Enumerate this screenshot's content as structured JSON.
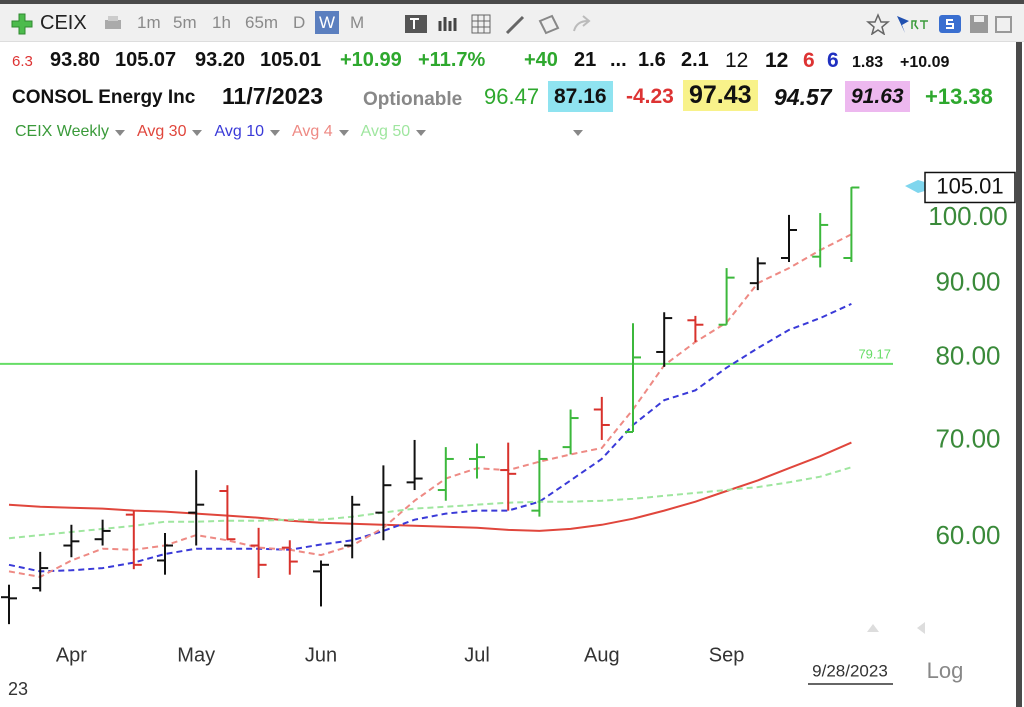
{
  "toolbar": {
    "symbol": "CEIX",
    "intervals": [
      "1m",
      "5m",
      "1h",
      "65m",
      "D",
      "W",
      "M"
    ]
  },
  "quote_row": [
    "6.3",
    "93.80",
    "105.07",
    "93.20",
    "105.01",
    "+10.99",
    "+11.7%",
    "+40",
    "21",
    "...",
    "1.6",
    "2.1",
    "12",
    "12",
    "6",
    "6",
    "1.83",
    "+10.09"
  ],
  "info_row": [
    "CONSOL Energy Inc",
    "11/7/2023",
    "Optionable",
    "96.47",
    "87.16",
    "-4.23",
    "97.43",
    "94.57",
    "91.63",
    "+13.38"
  ],
  "chart_data": {
    "type": "ohlc",
    "symbol_label": "CEIX Weekly",
    "symbol_color": "#3a9a3a",
    "log_scale": true,
    "ylim": [
      51.3,
      112.4
    ],
    "yticks": [
      {
        "value": 60,
        "label": "60.00"
      },
      {
        "value": 70,
        "label": "70.00"
      },
      {
        "value": 80,
        "label": "80.00"
      },
      {
        "value": 90,
        "label": "90.00"
      },
      {
        "value": 100,
        "label": "100.00"
      }
    ],
    "categories": [
      null,
      null,
      "Apr",
      null,
      null,
      null,
      "May",
      null,
      null,
      null,
      "Jun",
      null,
      null,
      null,
      null,
      "Jul",
      null,
      null,
      null,
      "Aug",
      null,
      null,
      null,
      "Sep",
      null,
      null,
      null,
      null
    ],
    "open": [
      54.5,
      55.3,
      59.2,
      59.8,
      62.2,
      57.8,
      62.4,
      64.6,
      59.2,
      59.0,
      56.8,
      59.2,
      62.4,
      65.5,
      64.7,
      68.0,
      66.8,
      62.6,
      69.3,
      73.6,
      71.0,
      80.7,
      84.9,
      84.3,
      90.1,
      93.8,
      94.0,
      93.8
    ],
    "high": [
      55.6,
      58.6,
      61.2,
      61.7,
      62.6,
      60.4,
      66.8,
      65.2,
      60.9,
      59.7,
      57.8,
      64.1,
      67.3,
      70.1,
      69.3,
      69.7,
      69.8,
      69.0,
      73.6,
      75.1,
      84.5,
      86.0,
      85.5,
      92.3,
      93.9,
      100.5,
      100.8,
      105.07
    ],
    "low": [
      52.2,
      55.0,
      58.1,
      59.2,
      57.0,
      56.5,
      59.2,
      59.7,
      56.2,
      56.5,
      53.7,
      58.0,
      59.7,
      64.7,
      63.6,
      65.9,
      62.6,
      62.0,
      68.5,
      70.1,
      71.0,
      78.8,
      82.0,
      84.3,
      89.1,
      93.2,
      92.4,
      93.2
    ],
    "close": [
      54.4,
      57.1,
      59.6,
      60.6,
      57.4,
      59.2,
      63.2,
      59.8,
      57.4,
      57.7,
      57.4,
      63.2,
      65.2,
      65.9,
      68.0,
      68.2,
      66.4,
      68.0,
      72.6,
      71.8,
      80.0,
      85.2,
      84.3,
      90.9,
      93.0,
      98.1,
      98.9,
      105.01
    ],
    "bar_colors": [
      "#111111",
      "#111111",
      "#111111",
      "#111111",
      "#d8322c",
      "#111111",
      "#111111",
      "#d8322c",
      "#d8322c",
      "#d8322c",
      "#111111",
      "#111111",
      "#111111",
      "#111111",
      "#3cb83c",
      "#3cb83c",
      "#d8322c",
      "#3cb83c",
      "#3cb83c",
      "#d8322c",
      "#3cb83c",
      "#111111",
      "#d8322c",
      "#3cb83c",
      "#111111",
      "#111111",
      "#3cb83c",
      "#3cb83c"
    ],
    "series": [
      {
        "name": "Avg 30",
        "color": "#e0463c",
        "dash": false,
        "values": [
          63.2,
          63.0,
          62.9,
          62.8,
          62.6,
          62.5,
          62.3,
          62.1,
          61.9,
          61.6,
          61.4,
          61.3,
          61.2,
          61.1,
          61.0,
          60.9,
          60.7,
          60.6,
          60.8,
          61.2,
          61.8,
          62.6,
          63.5,
          64.6,
          65.7,
          67.0,
          68.3,
          69.8
        ]
      },
      {
        "name": "Avg 10",
        "color": "#3a3ad8",
        "dash": true,
        "values": [
          57.4,
          56.8,
          56.9,
          57.1,
          57.6,
          58.4,
          58.9,
          58.9,
          58.9,
          58.8,
          59.3,
          59.7,
          60.6,
          61.7,
          62.3,
          62.6,
          62.6,
          63.5,
          65.7,
          68.0,
          71.8,
          74.7,
          75.9,
          78.7,
          81.2,
          83.6,
          85.2,
          87.16
        ]
      },
      {
        "name": "Avg 4",
        "color": "#ee8a84",
        "dash": true,
        "values": [
          56.8,
          56.3,
          57.8,
          58.9,
          58.8,
          59.2,
          60.2,
          59.7,
          59.0,
          58.8,
          58.3,
          59.2,
          60.9,
          63.6,
          65.9,
          67.0,
          66.8,
          67.7,
          68.5,
          69.2,
          73.6,
          79.0,
          82.0,
          84.6,
          90.1,
          92.3,
          95.0,
          97.43
        ]
      },
      {
        "name": "Avg 50",
        "color": "#9fe69f",
        "dash": true,
        "values": [
          59.9,
          60.2,
          60.5,
          60.8,
          61.1,
          61.5,
          61.5,
          61.6,
          61.6,
          61.7,
          61.7,
          62.0,
          62.4,
          62.8,
          63.0,
          63.2,
          63.4,
          63.5,
          63.5,
          63.6,
          63.8,
          64.1,
          64.4,
          64.7,
          65.0,
          65.5,
          66.1,
          67.1
        ]
      }
    ],
    "hline": {
      "value": 79.17,
      "color": "#66dd66"
    },
    "cursor_date": "9/28/2023",
    "scale_label": "Log",
    "year_fragment": "23"
  }
}
